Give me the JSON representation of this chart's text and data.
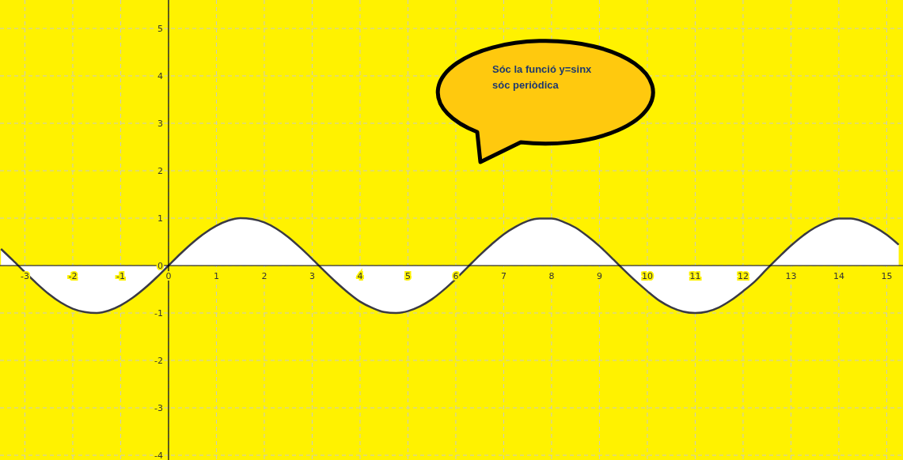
{
  "chart_data": {
    "type": "area",
    "x": [
      -3.5,
      -3.25,
      -3,
      -2.75,
      -2.5,
      -2.25,
      -2,
      -1.75,
      -1.5,
      -1.25,
      -1,
      -0.75,
      -0.5,
      -0.25,
      0,
      0.25,
      0.5,
      0.75,
      1,
      1.25,
      1.5,
      1.75,
      2,
      2.25,
      2.5,
      2.75,
      3,
      3.25,
      3.5,
      3.75,
      4,
      4.25,
      4.5,
      4.75,
      5,
      5.25,
      5.5,
      5.75,
      6,
      6.25,
      6.5,
      6.75,
      7,
      7.25,
      7.5,
      7.75,
      8,
      8.25,
      8.5,
      8.75,
      9,
      9.25,
      9.5,
      9.75,
      10,
      10.25,
      10.5,
      10.75,
      11,
      11.25,
      11.5,
      11.75,
      12,
      12.25,
      12.5,
      12.75,
      13,
      13.25,
      13.5,
      13.75,
      14,
      14.25,
      14.5,
      14.75,
      15,
      15.25
    ],
    "series": [
      {
        "color": "#ffffff",
        "values": [
          0.35,
          0.11,
          -0.14,
          -0.38,
          -0.6,
          -0.78,
          -0.91,
          -0.98,
          -1,
          -0.95,
          -0.84,
          -0.68,
          -0.48,
          -0.25,
          0,
          0.25,
          0.48,
          0.68,
          0.84,
          0.95,
          1,
          0.98,
          0.91,
          0.78,
          0.6,
          0.38,
          0.14,
          -0.11,
          -0.35,
          -0.57,
          -0.76,
          -0.89,
          -0.98,
          -1,
          -0.96,
          -0.86,
          -0.71,
          -0.51,
          -0.28,
          -0.03,
          0.22,
          0.45,
          0.66,
          0.82,
          0.94,
          0.99,
          0.99,
          0.92,
          0.8,
          0.62,
          0.41,
          0.17,
          -0.08,
          -0.32,
          -0.54,
          -0.74,
          -0.88,
          -0.97,
          -1,
          -0.97,
          -0.88,
          -0.73,
          -0.54,
          -0.33,
          -0.07,
          0.18,
          0.42,
          0.63,
          0.8,
          0.92,
          0.99,
          0.99,
          0.93,
          0.81,
          0.65,
          0.44
        ]
      }
    ],
    "xlim": [
      -3.52,
      15.34
    ],
    "ylim": [
      -4.1,
      5.6
    ],
    "xticks": [
      -3,
      -2,
      -1,
      0,
      1,
      2,
      3,
      4,
      5,
      6,
      7,
      8,
      9,
      10,
      11,
      12,
      13,
      14,
      15
    ],
    "yticks": [
      -4,
      -3,
      -2,
      -1,
      0,
      1,
      2,
      3,
      4,
      5
    ],
    "grid": true,
    "annotations": [
      "Sóc la funció y=sinx",
      "sóc periòdica"
    ]
  }
}
